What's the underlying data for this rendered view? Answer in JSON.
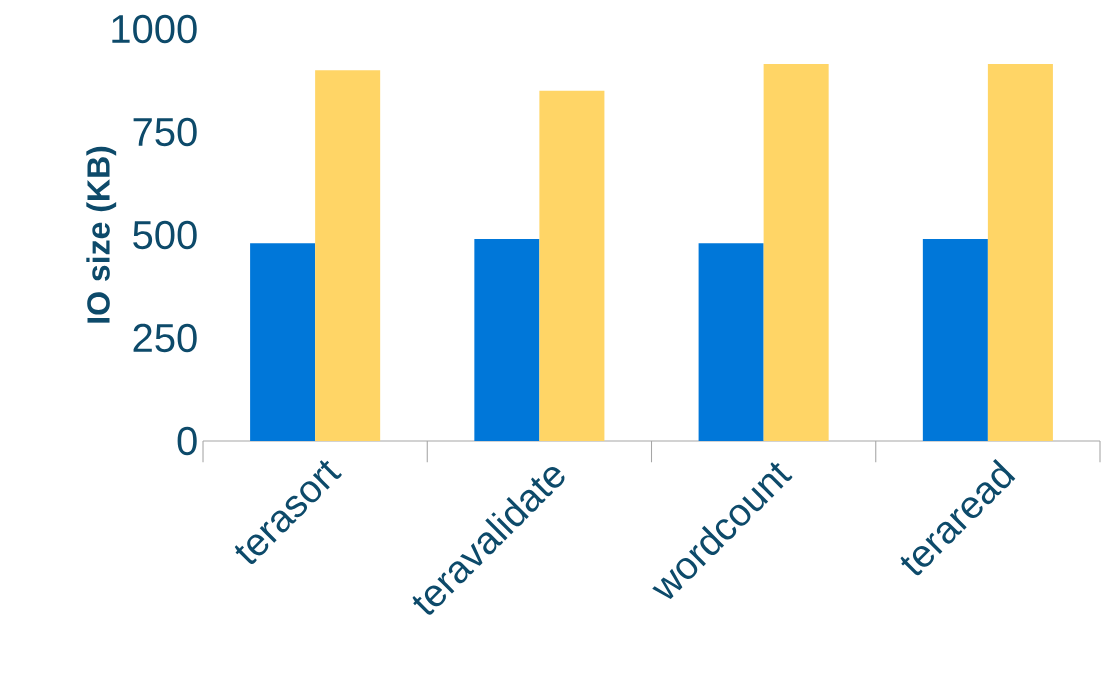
{
  "chart_data": {
    "type": "bar",
    "ylabel": "IO size (KB)",
    "categories": [
      "terasort",
      "teravalidate",
      "wordcount",
      "teraread"
    ],
    "series": [
      {
        "color": "#0077d9",
        "values": [
          480,
          490,
          480,
          490
        ]
      },
      {
        "color": "#ffd566",
        "values": [
          900,
          850,
          915,
          915
        ]
      }
    ],
    "ylim": [
      0,
      1000
    ],
    "yticks": [
      0,
      250,
      500,
      750,
      1000
    ]
  }
}
